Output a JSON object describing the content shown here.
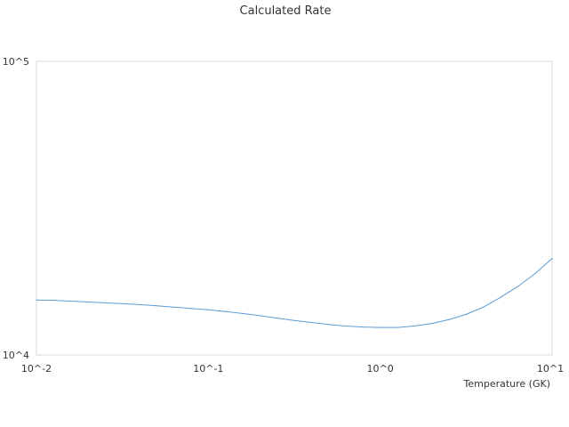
{
  "chart_data": {
    "type": "line",
    "title": "Calculated Rate",
    "xlabel": "Temperature (GK)",
    "ylabel": "",
    "x_scale": "log",
    "y_scale": "log",
    "xlim": [
      0.01,
      10
    ],
    "ylim": [
      10000,
      100000
    ],
    "x_ticks": [
      {
        "value": 0.01,
        "label": "10^-2"
      },
      {
        "value": 0.1,
        "label": "10^-1"
      },
      {
        "value": 1,
        "label": "10^0"
      },
      {
        "value": 10,
        "label": "10^1"
      }
    ],
    "y_ticks": [
      {
        "value": 10000,
        "label": "10^4"
      },
      {
        "value": 100000,
        "label": "10^5"
      }
    ],
    "grid": false,
    "legend": "none",
    "line_color": "#5b9bd5",
    "series": [
      {
        "x": [
          0.01,
          0.0126,
          0.0158,
          0.02,
          0.0251,
          0.0316,
          0.0398,
          0.0501,
          0.0631,
          0.0794,
          0.1,
          0.126,
          0.158,
          0.2,
          0.251,
          0.316,
          0.398,
          0.501,
          0.631,
          0.794,
          1.0,
          1.26,
          1.58,
          2.0,
          2.51,
          3.16,
          3.98,
          5.01,
          6.31,
          7.94,
          10.0
        ],
        "y": [
          15390,
          15350,
          15250,
          15150,
          15050,
          14950,
          14850,
          14700,
          14550,
          14400,
          14250,
          14050,
          13850,
          13600,
          13350,
          13100,
          12900,
          12700,
          12550,
          12450,
          12400,
          12400,
          12550,
          12800,
          13200,
          13750,
          14550,
          15700,
          17100,
          18900,
          21300
        ]
      }
    ]
  }
}
